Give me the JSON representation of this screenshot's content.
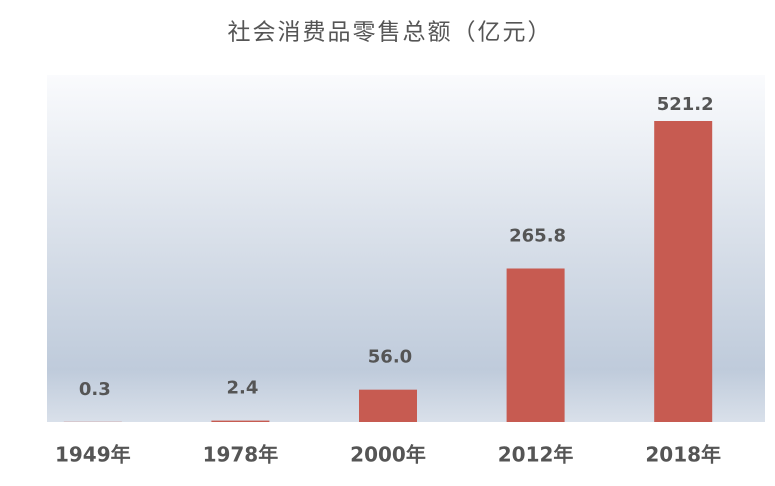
{
  "chart_data": {
    "type": "bar",
    "title": "社会消费品零售总额（亿元）",
    "categories": [
      "1949年",
      "1978年",
      "2000年",
      "2012年",
      "2018年"
    ],
    "values": [
      0.3,
      2.4,
      56.0,
      265.8,
      521.2
    ],
    "value_labels": [
      "0.3",
      "2.4",
      "56.0",
      "265.8",
      "521.2"
    ],
    "color": "#c75b51"
  }
}
